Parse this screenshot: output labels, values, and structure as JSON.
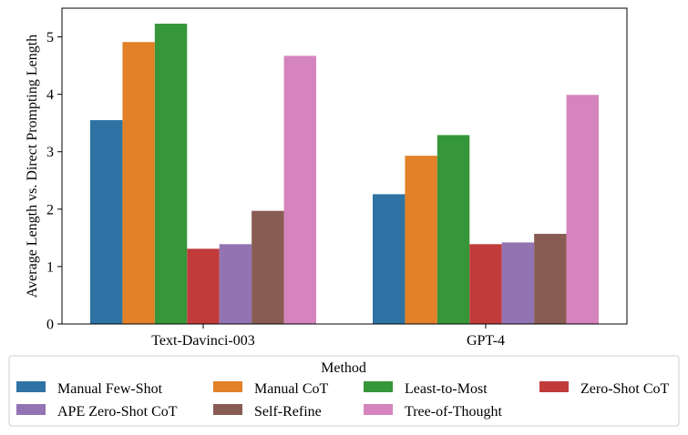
{
  "chart_data": {
    "type": "bar",
    "categories": [
      "Text-Davinci-003",
      "GPT-4"
    ],
    "ylabel": "Average Length vs. Direct Prompting Length",
    "xlabel": "",
    "ylim": [
      0,
      5.5
    ],
    "yticks": [
      0,
      1,
      2,
      3,
      4,
      5
    ],
    "grid": false,
    "legend": {
      "title": "Method",
      "placement": "bottom",
      "columns": 4
    },
    "series": [
      {
        "name": "Manual Few-Shot",
        "color": "#2e73a4",
        "values": [
          3.55,
          2.26
        ]
      },
      {
        "name": "Manual CoT",
        "color": "#e28128",
        "values": [
          4.91,
          2.93
        ]
      },
      {
        "name": "Least-to-Most",
        "color": "#36963a",
        "values": [
          5.23,
          3.29
        ]
      },
      {
        "name": "Zero-Shot CoT",
        "color": "#c13b3b",
        "values": [
          1.31,
          1.39
        ]
      },
      {
        "name": "APE Zero-Shot CoT",
        "color": "#9274b3",
        "values": [
          1.39,
          1.42
        ]
      },
      {
        "name": "Self-Refine",
        "color": "#885c53",
        "values": [
          1.97,
          1.57
        ]
      },
      {
        "name": "Tree-of-Thought",
        "color": "#d584bd",
        "values": [
          4.67,
          3.99
        ]
      }
    ]
  }
}
